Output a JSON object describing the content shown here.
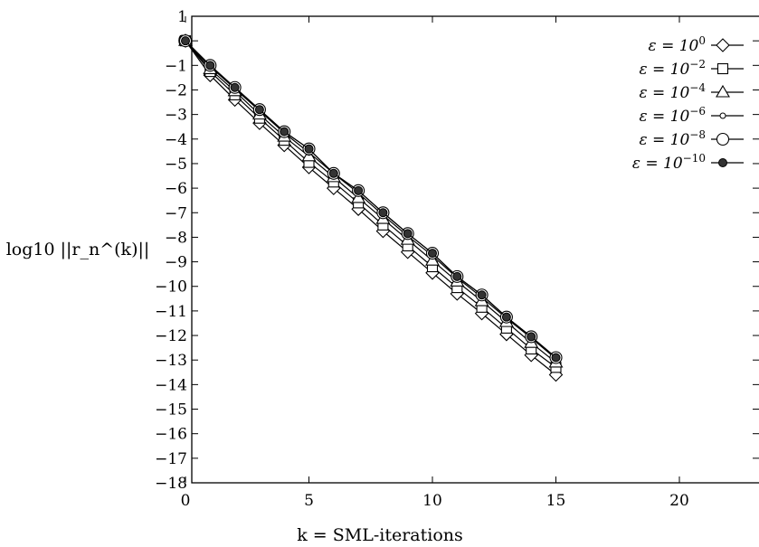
{
  "chart_data": {
    "type": "line",
    "xlabel": "k = SML-iterations",
    "ylabel": "log10 ||r_n^(k)||",
    "xlim": [
      0,
      22
    ],
    "ylim": [
      -18,
      1
    ],
    "xticks": [
      0,
      5,
      10,
      15,
      20
    ],
    "yticks": [
      1,
      0,
      -1,
      -2,
      -3,
      -4,
      -5,
      -6,
      -7,
      -8,
      -9,
      -10,
      -11,
      -12,
      -13,
      -14,
      -15,
      -16,
      -17,
      -18
    ],
    "legend_position": "top-right",
    "x": [
      0,
      1,
      2,
      3,
      4,
      5,
      6,
      7,
      8,
      9,
      10,
      11,
      12,
      13,
      14,
      15
    ],
    "series": [
      {
        "name": "ε = 10^0",
        "base": "ε = 10",
        "exp": "0",
        "marker": "diamond",
        "values": [
          0,
          -1.4,
          -2.4,
          -3.35,
          -4.25,
          -5.15,
          -6.0,
          -6.85,
          -7.75,
          -8.6,
          -9.45,
          -10.3,
          -11.1,
          -11.95,
          -12.8,
          -13.6
        ]
      },
      {
        "name": "ε = 10^-2",
        "base": "ε = 10",
        "exp": "−2",
        "marker": "square",
        "values": [
          0,
          -1.25,
          -2.2,
          -3.15,
          -4.05,
          -4.95,
          -5.75,
          -6.6,
          -7.5,
          -8.35,
          -9.2,
          -10.05,
          -10.85,
          -11.7,
          -12.55,
          -13.3
        ]
      },
      {
        "name": "ε = 10^-4",
        "base": "ε = 10",
        "exp": "−4",
        "marker": "triangle",
        "values": [
          0,
          -1.15,
          -2.05,
          -3.0,
          -3.9,
          -4.7,
          -5.55,
          -6.4,
          -7.25,
          -8.1,
          -8.95,
          -9.8,
          -10.6,
          -11.45,
          -12.3,
          -13.1
        ]
      },
      {
        "name": "ε = 10^-6",
        "base": "ε = 10",
        "exp": "−6",
        "marker": "small-circle",
        "values": [
          0,
          -1.05,
          -1.95,
          -2.85,
          -3.75,
          -4.55,
          -5.4,
          -6.2,
          -7.1,
          -7.95,
          -8.75,
          -9.65,
          -10.45,
          -11.3,
          -12.1,
          -12.95
        ]
      },
      {
        "name": "ε = 10^-8",
        "base": "ε = 10",
        "exp": "−8",
        "marker": "circle",
        "values": [
          0,
          -1.0,
          -1.9,
          -2.8,
          -3.7,
          -4.4,
          -5.4,
          -6.1,
          -7.0,
          -7.85,
          -8.65,
          -9.6,
          -10.35,
          -11.25,
          -12.05,
          -12.9
        ]
      },
      {
        "name": "ε = 10^-10",
        "base": "ε = 10",
        "exp": "−10",
        "marker": "filled-circle",
        "values": [
          0,
          -1.0,
          -1.9,
          -2.8,
          -3.7,
          -4.4,
          -5.4,
          -6.1,
          -7.0,
          -7.85,
          -8.65,
          -9.6,
          -10.35,
          -11.25,
          -12.05,
          -12.9
        ]
      }
    ]
  }
}
